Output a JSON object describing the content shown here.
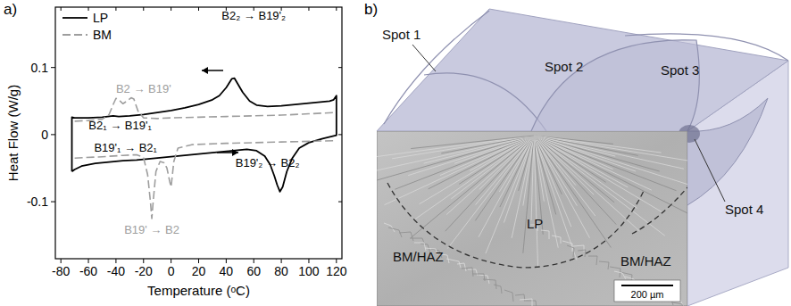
{
  "chart_data": {
    "type": "line",
    "title": "a)",
    "xlabel": "Temperature (ᵒC)",
    "ylabel": "Heat Flow (W/g)",
    "xlim": [
      -84,
      124
    ],
    "ylim": [
      -0.185,
      0.19
    ],
    "xticks": [
      -80,
      -60,
      -40,
      -20,
      0,
      20,
      40,
      60,
      80,
      100,
      120
    ],
    "yticks": [
      -0.1,
      0,
      0.1
    ],
    "grid": false,
    "legend": "upper left",
    "series": [
      {
        "name": "LP",
        "color": "#000000",
        "line_style": "solid",
        "x": [
          -72,
          -70,
          -65,
          -55,
          -45,
          -35,
          -25,
          -15,
          -5,
          5,
          15,
          25,
          35,
          45,
          55,
          62,
          68,
          72,
          75,
          77,
          79,
          81,
          84,
          88,
          93,
          100,
          110,
          120,
          120,
          118,
          115,
          110,
          100,
          90,
          80,
          70,
          62,
          57,
          52,
          48,
          46,
          44,
          40,
          35,
          30,
          20,
          10,
          0,
          -10,
          -20,
          -30,
          -38,
          -42,
          -46,
          -50,
          -60,
          -70,
          -72,
          -72
        ],
        "values": [
          -0.055,
          -0.052,
          -0.047,
          -0.043,
          -0.041,
          -0.039,
          -0.038,
          -0.036,
          -0.034,
          -0.032,
          -0.03,
          -0.028,
          -0.026,
          -0.024,
          -0.022,
          -0.024,
          -0.032,
          -0.045,
          -0.062,
          -0.075,
          -0.085,
          -0.078,
          -0.055,
          -0.035,
          -0.02,
          -0.012,
          -0.006,
          -0.001,
          0.058,
          0.052,
          0.05,
          0.049,
          0.047,
          0.045,
          0.043,
          0.042,
          0.044,
          0.05,
          0.063,
          0.077,
          0.084,
          0.083,
          0.07,
          0.058,
          0.052,
          0.045,
          0.04,
          0.036,
          0.033,
          0.03,
          0.028,
          0.027,
          0.028,
          0.027,
          0.026,
          0.025,
          0.025,
          0.026,
          -0.055
        ]
      },
      {
        "name": "BM",
        "color": "#9e9e9e",
        "line_style": "dashed",
        "x": [
          -70,
          -60,
          -50,
          -45,
          -42,
          -40,
          -38,
          -35,
          -32,
          -29,
          -27,
          -24,
          -20,
          -10,
          0,
          20,
          40,
          60,
          80,
          100,
          120,
          null,
          -70,
          -50,
          -35,
          -25,
          -20,
          -17,
          -15,
          -14,
          -13,
          -11,
          -8,
          -5,
          -3,
          -1,
          0,
          2,
          5,
          15,
          40,
          80,
          120
        ],
        "values": [
          0.02,
          0.021,
          0.023,
          0.03,
          0.045,
          0.054,
          0.052,
          0.046,
          0.05,
          0.055,
          0.053,
          0.035,
          0.025,
          0.024,
          0.025,
          0.026,
          0.027,
          0.028,
          0.029,
          0.031,
          0.033,
          null,
          -0.035,
          -0.033,
          -0.031,
          -0.03,
          -0.034,
          -0.06,
          -0.1,
          -0.125,
          -0.1,
          -0.055,
          -0.04,
          -0.042,
          -0.05,
          -0.07,
          -0.078,
          -0.04,
          -0.02,
          -0.015,
          -0.013,
          -0.011,
          -0.009
        ]
      }
    ],
    "annotations": [
      {
        "text": "B2₂ → B19'₂",
        "x": 60,
        "y": 0.172,
        "color": "#000000"
      },
      {
        "text": "B2 → B19'",
        "x": -20,
        "y": 0.062,
        "color": "#9e9e9e"
      },
      {
        "text": "B2₁ → B19'₁",
        "x": -37,
        "y": 0.008,
        "color": "#000000"
      },
      {
        "text": "B19'₁ → B2₁",
        "x": -33,
        "y": -0.025,
        "color": "#000000"
      },
      {
        "text": "B19'₂ → B2₂",
        "x": 70,
        "y": -0.048,
        "color": "#000000"
      },
      {
        "text": "B19' → B2",
        "x": -14,
        "y": -0.148,
        "color": "#9e9e9e"
      }
    ]
  },
  "diagram": {
    "title": "b)",
    "spots": [
      "Spot 1",
      "Spot 2",
      "Spot 3",
      "Spot 4"
    ],
    "regions": [
      "LP",
      "BM/HAZ",
      "BM/HAZ"
    ],
    "scale_bar": "200 µm"
  }
}
